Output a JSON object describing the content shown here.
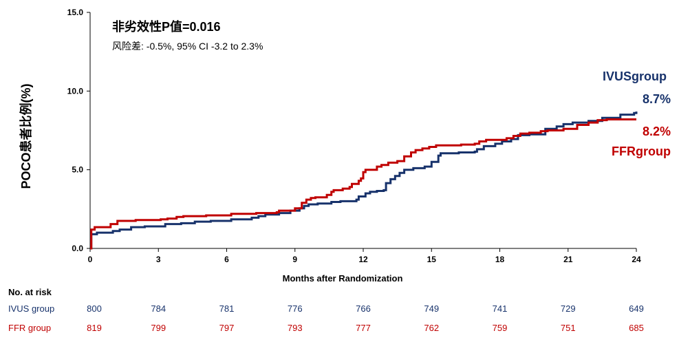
{
  "chart_data": {
    "type": "line",
    "title": "非劣效性P值=0.016",
    "subtitle": "风险差: -0.5%, 95% CI -3.2 to 2.3%",
    "xlabel": "Months after Randomization",
    "ylabel": "POCO患者比例(%)",
    "xlim": [
      0,
      24
    ],
    "ylim": [
      0,
      15
    ],
    "x_ticks": [
      0,
      3,
      6,
      9,
      12,
      15,
      18,
      21,
      24
    ],
    "y_ticks": [
      "0.0",
      "5.0",
      "10.0",
      "15.0"
    ],
    "grid": false,
    "series": [
      {
        "name": "IVUS group",
        "label": "IVUSgroup",
        "end_value_label": "8.7%",
        "color": "#17326b",
        "points": [
          [
            0,
            0
          ],
          [
            0.05,
            0.9
          ],
          [
            0.3,
            1.0
          ],
          [
            1.0,
            1.1
          ],
          [
            1.3,
            1.2
          ],
          [
            1.8,
            1.35
          ],
          [
            2.4,
            1.4
          ],
          [
            3.3,
            1.55
          ],
          [
            4.0,
            1.6
          ],
          [
            4.6,
            1.7
          ],
          [
            5.3,
            1.75
          ],
          [
            6.2,
            1.85
          ],
          [
            7.1,
            1.95
          ],
          [
            7.4,
            2.05
          ],
          [
            7.7,
            2.15
          ],
          [
            8.3,
            2.25
          ],
          [
            8.8,
            2.4
          ],
          [
            9.2,
            2.55
          ],
          [
            9.4,
            2.7
          ],
          [
            9.6,
            2.8
          ],
          [
            10.0,
            2.85
          ],
          [
            10.6,
            2.95
          ],
          [
            11.0,
            3.0
          ],
          [
            11.7,
            3.1
          ],
          [
            11.8,
            3.3
          ],
          [
            12.1,
            3.5
          ],
          [
            12.3,
            3.6
          ],
          [
            12.6,
            3.65
          ],
          [
            12.9,
            3.7
          ],
          [
            13.0,
            4.15
          ],
          [
            13.2,
            4.4
          ],
          [
            13.4,
            4.6
          ],
          [
            13.6,
            4.8
          ],
          [
            13.8,
            5.0
          ],
          [
            14.2,
            5.1
          ],
          [
            14.7,
            5.2
          ],
          [
            15.0,
            5.5
          ],
          [
            15.3,
            5.9
          ],
          [
            15.4,
            6.05
          ],
          [
            16.2,
            6.1
          ],
          [
            16.9,
            6.15
          ],
          [
            17.0,
            6.3
          ],
          [
            17.3,
            6.5
          ],
          [
            17.8,
            6.65
          ],
          [
            18.1,
            6.8
          ],
          [
            18.5,
            6.95
          ],
          [
            18.8,
            7.2
          ],
          [
            19.3,
            7.25
          ],
          [
            20.0,
            7.6
          ],
          [
            20.5,
            7.75
          ],
          [
            20.8,
            7.9
          ],
          [
            21.2,
            8.0
          ],
          [
            21.9,
            8.1
          ],
          [
            22.5,
            8.3
          ],
          [
            23.3,
            8.5
          ],
          [
            23.9,
            8.6
          ],
          [
            24.0,
            8.7
          ]
        ]
      },
      {
        "name": "FFR group",
        "label": "FFRgroup",
        "end_value_label": "8.2%",
        "color": "#c00000",
        "points": [
          [
            0,
            0
          ],
          [
            0.05,
            1.2
          ],
          [
            0.2,
            1.35
          ],
          [
            0.9,
            1.55
          ],
          [
            1.2,
            1.75
          ],
          [
            2.0,
            1.8
          ],
          [
            3.1,
            1.85
          ],
          [
            3.4,
            1.9
          ],
          [
            3.8,
            2.0
          ],
          [
            4.1,
            2.05
          ],
          [
            5.1,
            2.1
          ],
          [
            6.2,
            2.2
          ],
          [
            7.3,
            2.25
          ],
          [
            8.2,
            2.3
          ],
          [
            8.3,
            2.4
          ],
          [
            9.0,
            2.55
          ],
          [
            9.3,
            2.9
          ],
          [
            9.5,
            3.1
          ],
          [
            9.7,
            3.2
          ],
          [
            9.9,
            3.25
          ],
          [
            10.4,
            3.4
          ],
          [
            10.6,
            3.6
          ],
          [
            10.7,
            3.7
          ],
          [
            11.1,
            3.8
          ],
          [
            11.4,
            3.9
          ],
          [
            11.5,
            4.1
          ],
          [
            11.8,
            4.3
          ],
          [
            11.9,
            4.45
          ],
          [
            12.0,
            4.85
          ],
          [
            12.1,
            5.0
          ],
          [
            12.6,
            5.2
          ],
          [
            12.8,
            5.3
          ],
          [
            13.1,
            5.45
          ],
          [
            13.5,
            5.55
          ],
          [
            13.8,
            5.85
          ],
          [
            14.1,
            6.1
          ],
          [
            14.3,
            6.25
          ],
          [
            14.6,
            6.35
          ],
          [
            14.9,
            6.45
          ],
          [
            15.2,
            6.55
          ],
          [
            16.3,
            6.6
          ],
          [
            16.9,
            6.65
          ],
          [
            17.1,
            6.8
          ],
          [
            17.4,
            6.9
          ],
          [
            18.3,
            7.0
          ],
          [
            18.6,
            7.15
          ],
          [
            18.9,
            7.3
          ],
          [
            19.3,
            7.35
          ],
          [
            19.8,
            7.45
          ],
          [
            20.1,
            7.5
          ],
          [
            20.8,
            7.6
          ],
          [
            21.4,
            7.85
          ],
          [
            21.9,
            8.0
          ],
          [
            22.3,
            8.15
          ],
          [
            22.7,
            8.2
          ],
          [
            24.0,
            8.2
          ]
        ]
      }
    ]
  },
  "risk_table": {
    "header": "No. at risk",
    "rows": [
      {
        "label": "IVUS group",
        "color": "#17326b",
        "values": [
          "800",
          "784",
          "781",
          "776",
          "766",
          "749",
          "741",
          "729",
          "649"
        ]
      },
      {
        "label": "FFR group",
        "color": "#c00000",
        "values": [
          "819",
          "799",
          "797",
          "793",
          "777",
          "762",
          "759",
          "751",
          "685"
        ]
      }
    ]
  }
}
